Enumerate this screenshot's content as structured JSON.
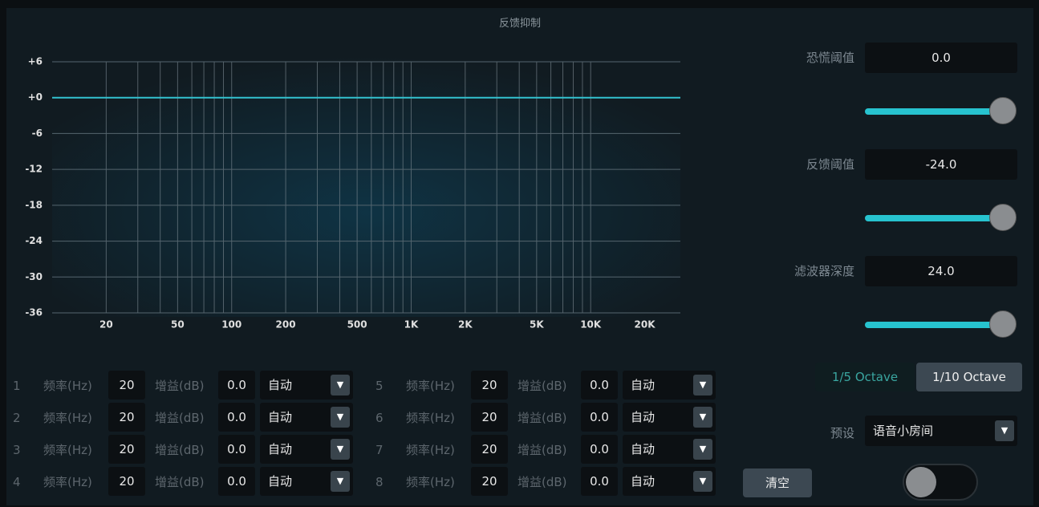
{
  "header": {
    "title": "反馈抑制"
  },
  "chart_data": {
    "type": "line",
    "log_x": true,
    "grid": true,
    "xlim": [
      10,
      31600
    ],
    "ylim": [
      -36,
      6
    ],
    "yticks": [
      {
        "value": 6,
        "label": "+6"
      },
      {
        "value": 0,
        "label": "+0"
      },
      -6,
      -12,
      -18,
      -24,
      -30,
      -36
    ],
    "xticks": [
      20,
      50,
      100,
      200,
      500,
      {
        "value": 1000,
        "label": "1K"
      },
      {
        "value": 2000,
        "label": "2K"
      },
      {
        "value": 5000,
        "label": "5K"
      },
      {
        "value": 10000,
        "label": "10K"
      },
      {
        "value": 20000,
        "label": "20K"
      }
    ],
    "xgrid": [
      20,
      30,
      40,
      50,
      60,
      70,
      80,
      90,
      100,
      200,
      300,
      400,
      500,
      600,
      700,
      800,
      900,
      1000,
      2000,
      3000,
      4000,
      5000,
      6000,
      7000,
      8000,
      9000,
      10000
    ],
    "series": [
      {
        "color": "#33c2d0",
        "x": [
          10,
          31600
        ],
        "values": [
          0,
          0
        ]
      }
    ]
  },
  "controls": [
    {
      "label": "恐慌阈值",
      "value": "0.0"
    },
    {
      "label": "反馈阈值",
      "value": "-24.0"
    },
    {
      "label": "滤波器深度",
      "value": "24.0"
    }
  ],
  "octave": [
    "1/5 Octave",
    "1/10 Octave"
  ],
  "preset": {
    "label": "预设",
    "value": "语音小房间"
  },
  "clear": "清空",
  "filters": [
    {
      "index": "1",
      "freq_label": "频率(Hz)",
      "freq": "20",
      "gain_label": "增益(dB)",
      "gain": "0.0",
      "mode": "自动"
    },
    {
      "index": "2",
      "freq_label": "频率(Hz)",
      "freq": "20",
      "gain_label": "增益(dB)",
      "gain": "0.0",
      "mode": "自动"
    },
    {
      "index": "3",
      "freq_label": "频率(Hz)",
      "freq": "20",
      "gain_label": "增益(dB)",
      "gain": "0.0",
      "mode": "自动"
    },
    {
      "index": "4",
      "freq_label": "频率(Hz)",
      "freq": "20",
      "gain_label": "增益(dB)",
      "gain": "0.0",
      "mode": "自动"
    },
    {
      "index": "5",
      "freq_label": "频率(Hz)",
      "freq": "20",
      "gain_label": "增益(dB)",
      "gain": "0.0",
      "mode": "自动"
    },
    {
      "index": "6",
      "freq_label": "频率(Hz)",
      "freq": "20",
      "gain_label": "增益(dB)",
      "gain": "0.0",
      "mode": "自动"
    },
    {
      "index": "7",
      "freq_label": "频率(Hz)",
      "freq": "20",
      "gain_label": "增益(dB)",
      "gain": "0.0",
      "mode": "自动"
    },
    {
      "index": "8",
      "freq_label": "频率(Hz)",
      "freq": "20",
      "gain_label": "增益(dB)",
      "gain": "0.0",
      "mode": "自动"
    }
  ]
}
